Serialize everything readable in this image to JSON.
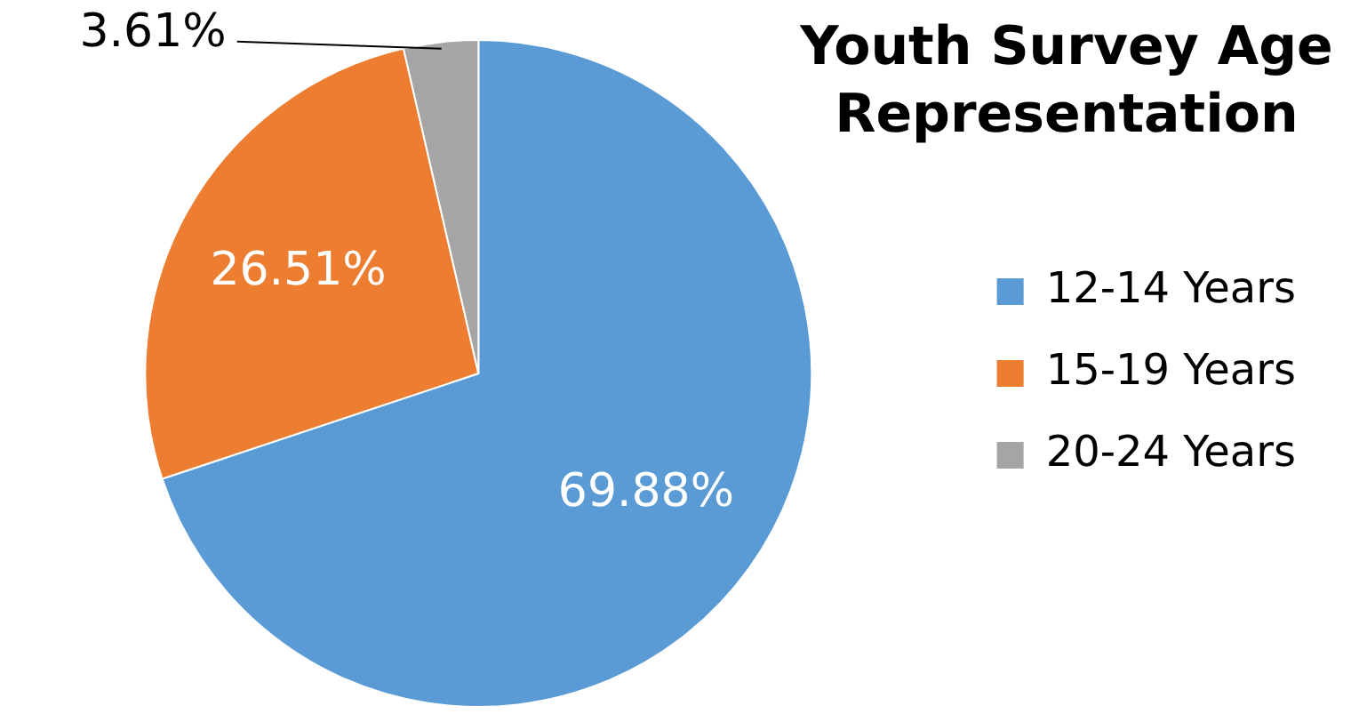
{
  "chart_data": {
    "type": "pie",
    "title": "Youth Survey Age Representation",
    "categories": [
      "12-14 Years",
      "15-19 Years",
      "20-24 Years"
    ],
    "values": [
      69.88,
      26.51,
      3.61
    ],
    "colors": [
      "#5b9bd5",
      "#ed7d31",
      "#a5a5a5"
    ],
    "value_labels": [
      "69.88%",
      "26.51%",
      "3.61%"
    ],
    "legend": "right"
  }
}
